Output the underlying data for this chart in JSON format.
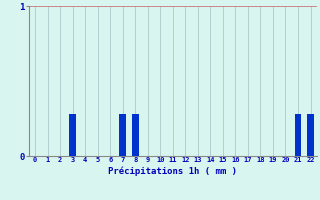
{
  "title": "Précipitations 1h ( mm )",
  "hours": [
    0,
    1,
    2,
    3,
    4,
    5,
    6,
    7,
    8,
    9,
    10,
    11,
    12,
    13,
    14,
    15,
    16,
    17,
    18,
    19,
    20,
    21,
    22
  ],
  "values": [
    0,
    0,
    0,
    0.28,
    0,
    0,
    0,
    0.28,
    0.28,
    0,
    0,
    0,
    0,
    0,
    0,
    0,
    0,
    0,
    0,
    0,
    0,
    0.28,
    0.28
  ],
  "bar_color": "#0033cc",
  "background_color": "#d9f5f0",
  "grid_color": "#aac8c8",
  "axis_color": "#888888",
  "text_color": "#0000bb",
  "ylim": [
    0,
    1
  ],
  "xlim": [
    -0.5,
    22.5
  ],
  "title_fontsize": 6.5,
  "tick_fontsize": 5.0
}
